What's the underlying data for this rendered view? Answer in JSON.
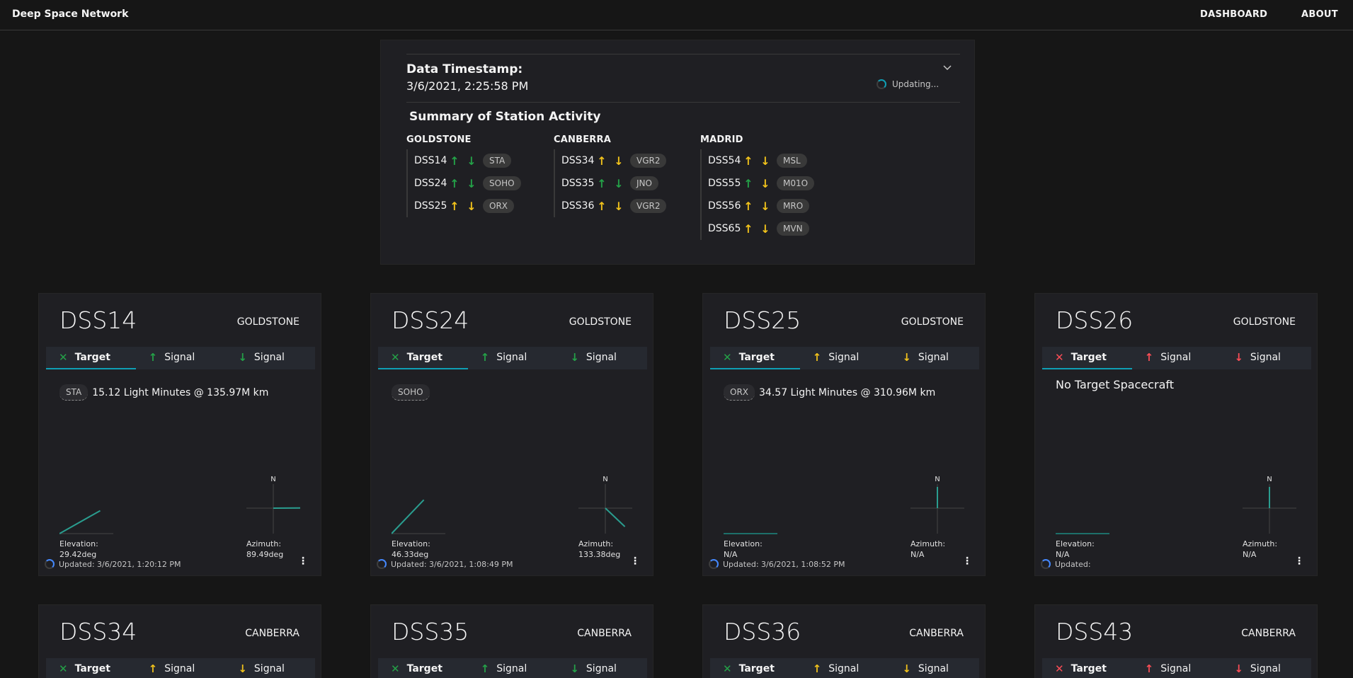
{
  "header": {
    "brand": "Deep Space Network",
    "nav": [
      "DASHBOARD",
      "ABOUT"
    ]
  },
  "summary": {
    "timestamp_label": "Data Timestamp:",
    "timestamp_value": "3/6/2021, 2:25:58 PM",
    "updating": "Updating...",
    "title": "Summary of Station Activity",
    "complexes": [
      {
        "name": "GOLDSTONE",
        "stations": [
          {
            "dss": "DSS14",
            "up": "green",
            "down": "green",
            "target": "STA"
          },
          {
            "dss": "DSS24",
            "up": "green",
            "down": "green",
            "target": "SOHO"
          },
          {
            "dss": "DSS25",
            "up": "yellow",
            "down": "yellow",
            "target": "ORX"
          }
        ]
      },
      {
        "name": "CANBERRA",
        "stations": [
          {
            "dss": "DSS34",
            "up": "yellow",
            "down": "yellow",
            "target": "VGR2"
          },
          {
            "dss": "DSS35",
            "up": "green",
            "down": "green",
            "target": "JNO"
          },
          {
            "dss": "DSS36",
            "up": "yellow",
            "down": "yellow",
            "target": "VGR2"
          }
        ]
      },
      {
        "name": "MADRID",
        "stations": [
          {
            "dss": "DSS54",
            "up": "yellow",
            "down": "yellow",
            "target": "MSL"
          },
          {
            "dss": "DSS55",
            "up": "green",
            "down": "yellow",
            "target": "M01O"
          },
          {
            "dss": "DSS56",
            "up": "yellow",
            "down": "yellow",
            "target": "MRO"
          },
          {
            "dss": "DSS65",
            "up": "yellow",
            "down": "yellow",
            "target": "MVN"
          }
        ]
      }
    ]
  },
  "tab_labels": {
    "target": "Target",
    "signal": "Signal"
  },
  "metric_labels": {
    "elevation": "Elevation:",
    "azimuth": "Azimuth:",
    "north": "N",
    "updated_prefix": "Updated:"
  },
  "colors": {
    "green": "#24a148",
    "yellow": "#f1c21b",
    "red": "#fa4d56",
    "accent": "#0f9fb5"
  },
  "icons": {
    "target": "satellite-icon",
    "up": "arrow-up-icon",
    "down": "arrow-down-icon",
    "menu": "overflow-menu-icon"
  },
  "cards": [
    {
      "title": "DSS14",
      "complex": "GOLDSTONE",
      "state": "green",
      "up": "green",
      "down": "green",
      "target": "STA",
      "distance": "15.12 Light Minutes @ 135.97M km",
      "elevation": "29.42deg",
      "azimuth": "89.49deg",
      "updated": "3/6/2021, 1:20:12 PM",
      "elevation_deg": 29.42,
      "azimuth_deg": 89.49
    },
    {
      "title": "DSS24",
      "complex": "GOLDSTONE",
      "state": "green",
      "up": "green",
      "down": "green",
      "target": "SOHO",
      "distance": "",
      "elevation": "46.33deg",
      "azimuth": "133.38deg",
      "updated": "3/6/2021, 1:08:49 PM",
      "elevation_deg": 46.33,
      "azimuth_deg": 133.38
    },
    {
      "title": "DSS25",
      "complex": "GOLDSTONE",
      "state": "green",
      "up": "yellow",
      "down": "yellow",
      "target": "ORX",
      "distance": "34.57 Light Minutes @ 310.96M km",
      "elevation": "N/A",
      "azimuth": "N/A",
      "updated": "3/6/2021, 1:08:52 PM",
      "elevation_deg": null,
      "azimuth_deg": null
    },
    {
      "title": "DSS26",
      "complex": "GOLDSTONE",
      "state": "red",
      "up": "red",
      "down": "red",
      "target": "",
      "no_target": "No Target Spacecraft",
      "distance": "",
      "elevation": "N/A",
      "azimuth": "N/A",
      "updated": "",
      "elevation_deg": null,
      "azimuth_deg": null
    },
    {
      "title": "DSS34",
      "complex": "CANBERRA",
      "state": "green",
      "up": "yellow",
      "down": "yellow"
    },
    {
      "title": "DSS35",
      "complex": "CANBERRA",
      "state": "green",
      "up": "green",
      "down": "green"
    },
    {
      "title": "DSS36",
      "complex": "CANBERRA",
      "state": "green",
      "up": "yellow",
      "down": "yellow"
    },
    {
      "title": "DSS43",
      "complex": "CANBERRA",
      "state": "red",
      "up": "red",
      "down": "red"
    }
  ]
}
